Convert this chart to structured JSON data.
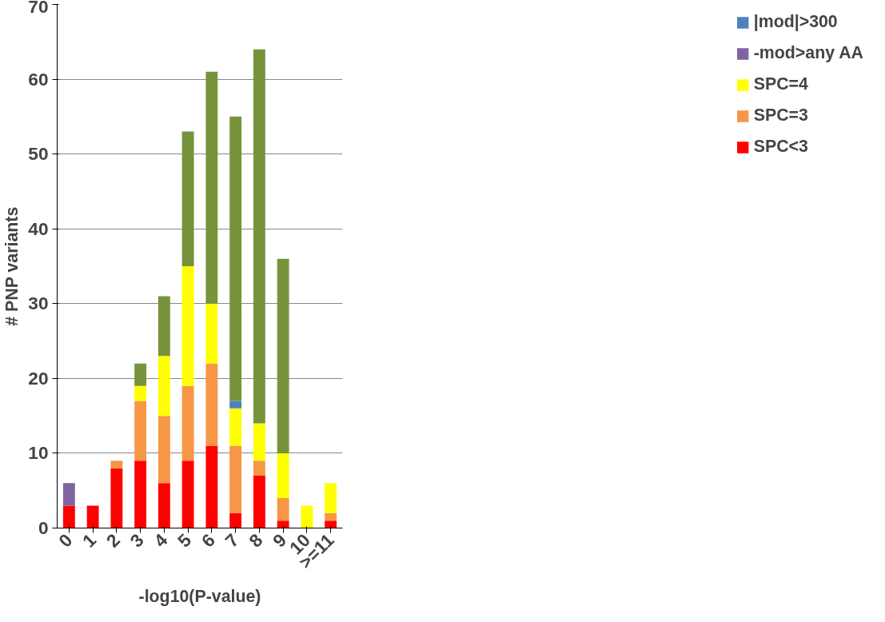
{
  "chart_data": {
    "type": "bar",
    "stacked": true,
    "xlabel": "-log10(P-value)",
    "ylabel": "# PNP variants",
    "categories": [
      "0",
      "1",
      "2",
      "3",
      "4",
      "5",
      "6",
      "7",
      "8",
      "9",
      "10",
      ">=11"
    ],
    "series": [
      {
        "name": "SPC<3",
        "color": "#ff0000",
        "values": [
          3,
          3,
          8,
          9,
          6,
          9,
          11,
          2,
          7,
          1,
          0,
          1
        ]
      },
      {
        "name": "SPC=3",
        "color": "#f79646",
        "values": [
          0,
          0,
          1,
          8,
          9,
          10,
          11,
          9,
          2,
          3,
          0,
          1
        ]
      },
      {
        "name": "SPC=4",
        "color": "#ffff00",
        "values": [
          0,
          0,
          0,
          2,
          8,
          16,
          8,
          5,
          5,
          6,
          3,
          4
        ]
      },
      {
        "name": "-mod>any AA",
        "color": "#8064a2",
        "values": [
          3,
          0,
          0,
          0,
          0,
          0,
          0,
          0,
          0,
          0,
          0,
          0
        ]
      },
      {
        "name": "|mod|>300",
        "color": "#4f81bd",
        "values": [
          0,
          0,
          0,
          0,
          0,
          0,
          0,
          1,
          0,
          0,
          0,
          0
        ]
      },
      {
        "color": "#77933c",
        "values": [
          0,
          0,
          0,
          3,
          8,
          18,
          31,
          38,
          50,
          26,
          0,
          0
        ]
      }
    ],
    "ylim": [
      0,
      70
    ],
    "yticks": [
      0,
      10,
      20,
      30,
      40,
      50,
      60,
      70
    ],
    "grid": "y",
    "legend": "right"
  }
}
